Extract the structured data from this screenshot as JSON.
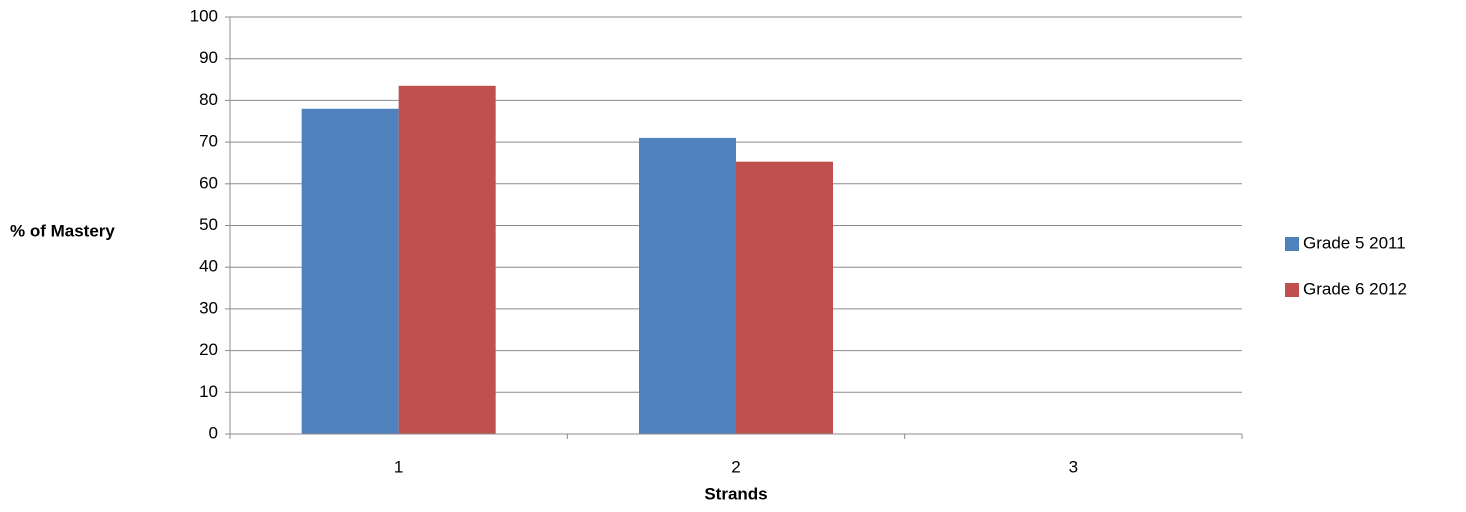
{
  "chart_data": {
    "type": "bar",
    "title": "",
    "xlabel": "Strands",
    "ylabel": "% of Mastery",
    "categories": [
      "1",
      "2",
      "3"
    ],
    "series": [
      {
        "name": "Grade 5 2011",
        "color": "#4F81BD",
        "values": [
          78,
          71,
          null
        ]
      },
      {
        "name": "Grade 6 2012",
        "color": "#C0504D",
        "values": [
          83.5,
          65.3,
          null
        ]
      }
    ],
    "ylim": [
      0,
      100
    ],
    "yticks": [
      "0",
      "10",
      "20",
      "30",
      "40",
      "50",
      "60",
      "70",
      "80",
      "90",
      "100"
    ],
    "grid": true,
    "legend_position": "right"
  }
}
